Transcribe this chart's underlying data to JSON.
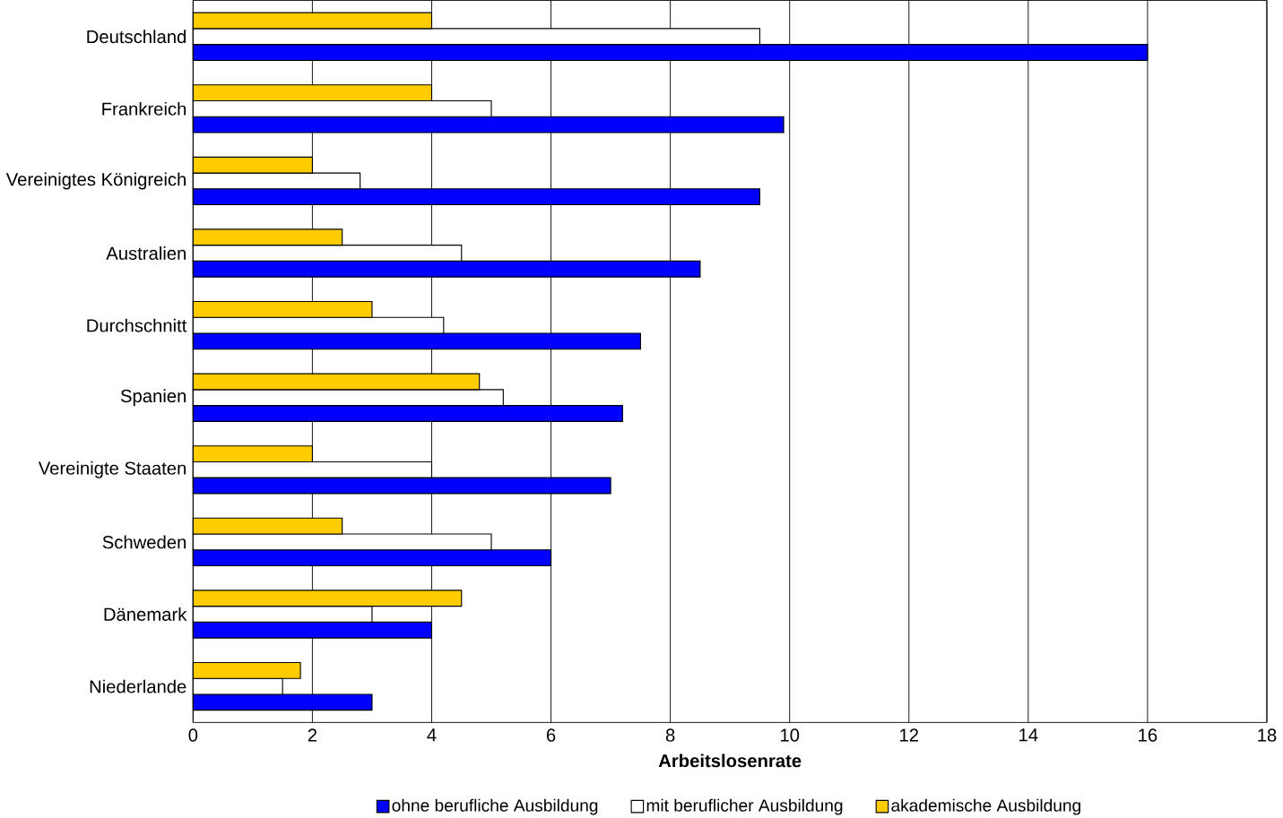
{
  "chart_data": {
    "type": "bar",
    "orientation": "horizontal",
    "xlabel": "Arbeitslosenrate",
    "categories": [
      "Deutschland",
      "Frankreich",
      "Vereinigtes Königreich",
      "Australien",
      "Durchschnitt",
      "Spanien",
      "Vereinigte Staaten",
      "Schweden",
      "Dänemark",
      "Niederlande"
    ],
    "series": [
      {
        "name": "ohne berufliche Ausbildung",
        "color": "#0000ff",
        "values": [
          16.0,
          9.9,
          9.5,
          8.5,
          7.5,
          7.2,
          7.0,
          6.0,
          4.0,
          3.0
        ]
      },
      {
        "name": "mit beruflicher Ausbildung",
        "color": "#ffffff",
        "values": [
          9.5,
          5.0,
          2.8,
          4.5,
          4.2,
          5.2,
          4.0,
          5.0,
          3.0,
          1.5
        ]
      },
      {
        "name": "akademische Ausbildung",
        "color": "#ffcc00",
        "values": [
          4.0,
          4.0,
          2.0,
          2.5,
          3.0,
          4.8,
          2.0,
          2.5,
          4.5,
          1.8
        ]
      }
    ],
    "xlim": [
      0,
      18
    ],
    "xticks": [
      0,
      2,
      4,
      6,
      8,
      10,
      12,
      14,
      16,
      18
    ],
    "grid": "x",
    "legend": "bottom"
  }
}
